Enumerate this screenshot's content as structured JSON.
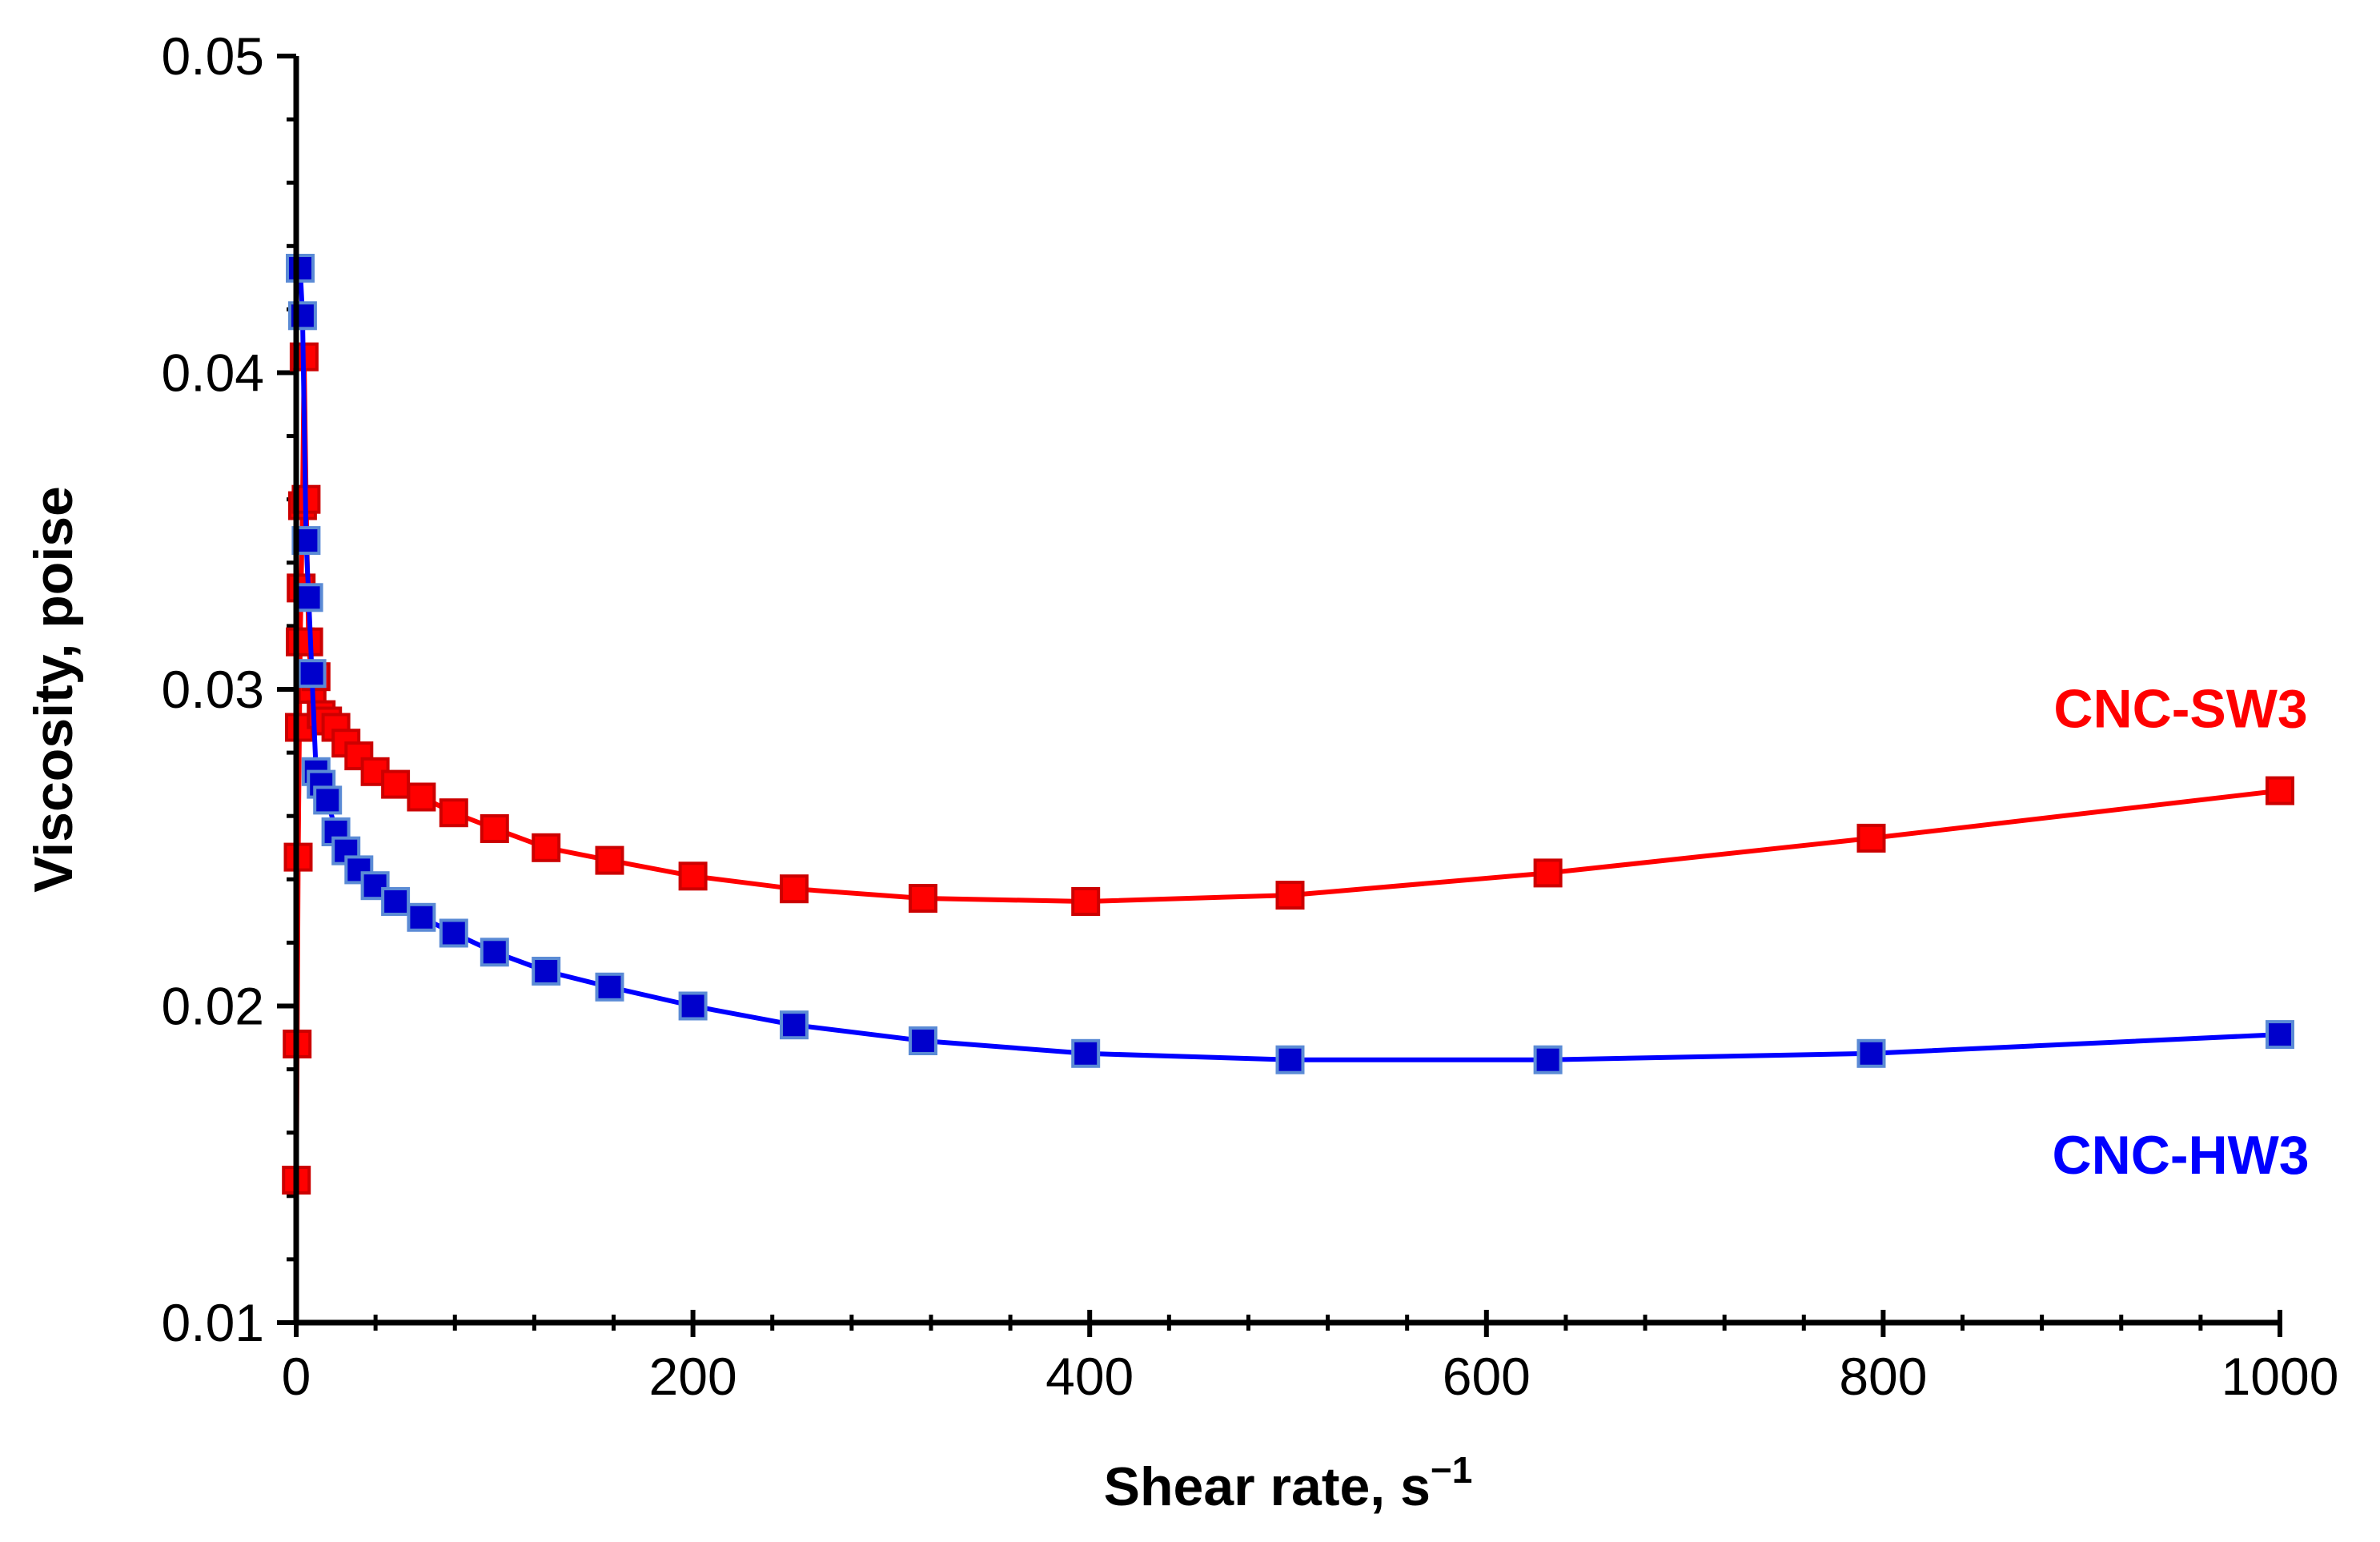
{
  "chart_data": {
    "type": "scatter",
    "title": "",
    "xlabel": "Shear rate, s",
    "xlabel_sup": "−1",
    "ylabel": "Viscosity, poise",
    "xlim": [
      0,
      1000
    ],
    "ylim": [
      0.01,
      0.05
    ],
    "x_ticks": [
      0,
      200,
      400,
      600,
      800,
      1000
    ],
    "x_tick_labels": [
      "0",
      "200",
      "400",
      "600",
      "800",
      "1000"
    ],
    "y_ticks": [
      0.01,
      0.02,
      0.03,
      0.04,
      0.05
    ],
    "y_tick_labels": [
      "0.01",
      "0.02",
      "0.03",
      "0.04",
      "0.05"
    ],
    "x_minor_step": 40,
    "y_minor_step": 0.002,
    "grid": false,
    "series": [
      {
        "name": "CNC-SW3",
        "color": "#ff0000",
        "marker_fill": "#ff0000",
        "marker_edge": "#cc0000",
        "x": [
          0.1,
          0.5,
          1.0,
          1.6,
          2.0,
          2.5,
          3.2,
          4.0,
          5.0,
          6.3,
          8.0,
          10,
          12.6,
          15.8,
          20,
          25.1,
          31.6,
          39.8,
          50.1,
          63.1,
          79.4,
          100,
          126,
          158,
          200,
          251,
          316,
          398,
          501,
          631,
          794,
          1000
        ],
        "y": [
          0.0145,
          0.0188,
          0.0247,
          0.0288,
          0.0315,
          0.0332,
          0.0358,
          0.0405,
          0.036,
          0.0315,
          0.03,
          0.0304,
          0.0292,
          0.029,
          0.0288,
          0.0283,
          0.0279,
          0.0274,
          0.027,
          0.0266,
          0.0261,
          0.0256,
          0.025,
          0.0246,
          0.0241,
          0.0237,
          0.0234,
          0.0233,
          0.0235,
          0.0242,
          0.0253,
          0.0268
        ],
        "label_text": "CNC-SW3",
        "label_x": 950,
        "label_y": 0.0288
      },
      {
        "name": "CNC-HW3",
        "color": "#0000ff",
        "marker_fill": "#0000cc",
        "marker_edge": "#5b8bd5",
        "x": [
          2.0,
          3.2,
          5.0,
          6.3,
          7.9,
          10,
          12.6,
          15.8,
          20,
          25.1,
          31.6,
          39.8,
          50.1,
          63.1,
          79.4,
          100,
          126,
          158,
          200,
          251,
          316,
          398,
          501,
          631,
          794,
          1000
        ],
        "y": [
          0.0433,
          0.0418,
          0.0347,
          0.0329,
          0.0305,
          0.0274,
          0.027,
          0.0265,
          0.0255,
          0.0249,
          0.0243,
          0.0238,
          0.0233,
          0.0228,
          0.0223,
          0.0217,
          0.0211,
          0.0206,
          0.02,
          0.0194,
          0.0189,
          0.0185,
          0.0183,
          0.0183,
          0.0185,
          0.0191
        ],
        "label_text": "CNC-HW3",
        "label_x": 950,
        "label_y": 0.0147
      }
    ],
    "axis_line_color": "#000000"
  }
}
